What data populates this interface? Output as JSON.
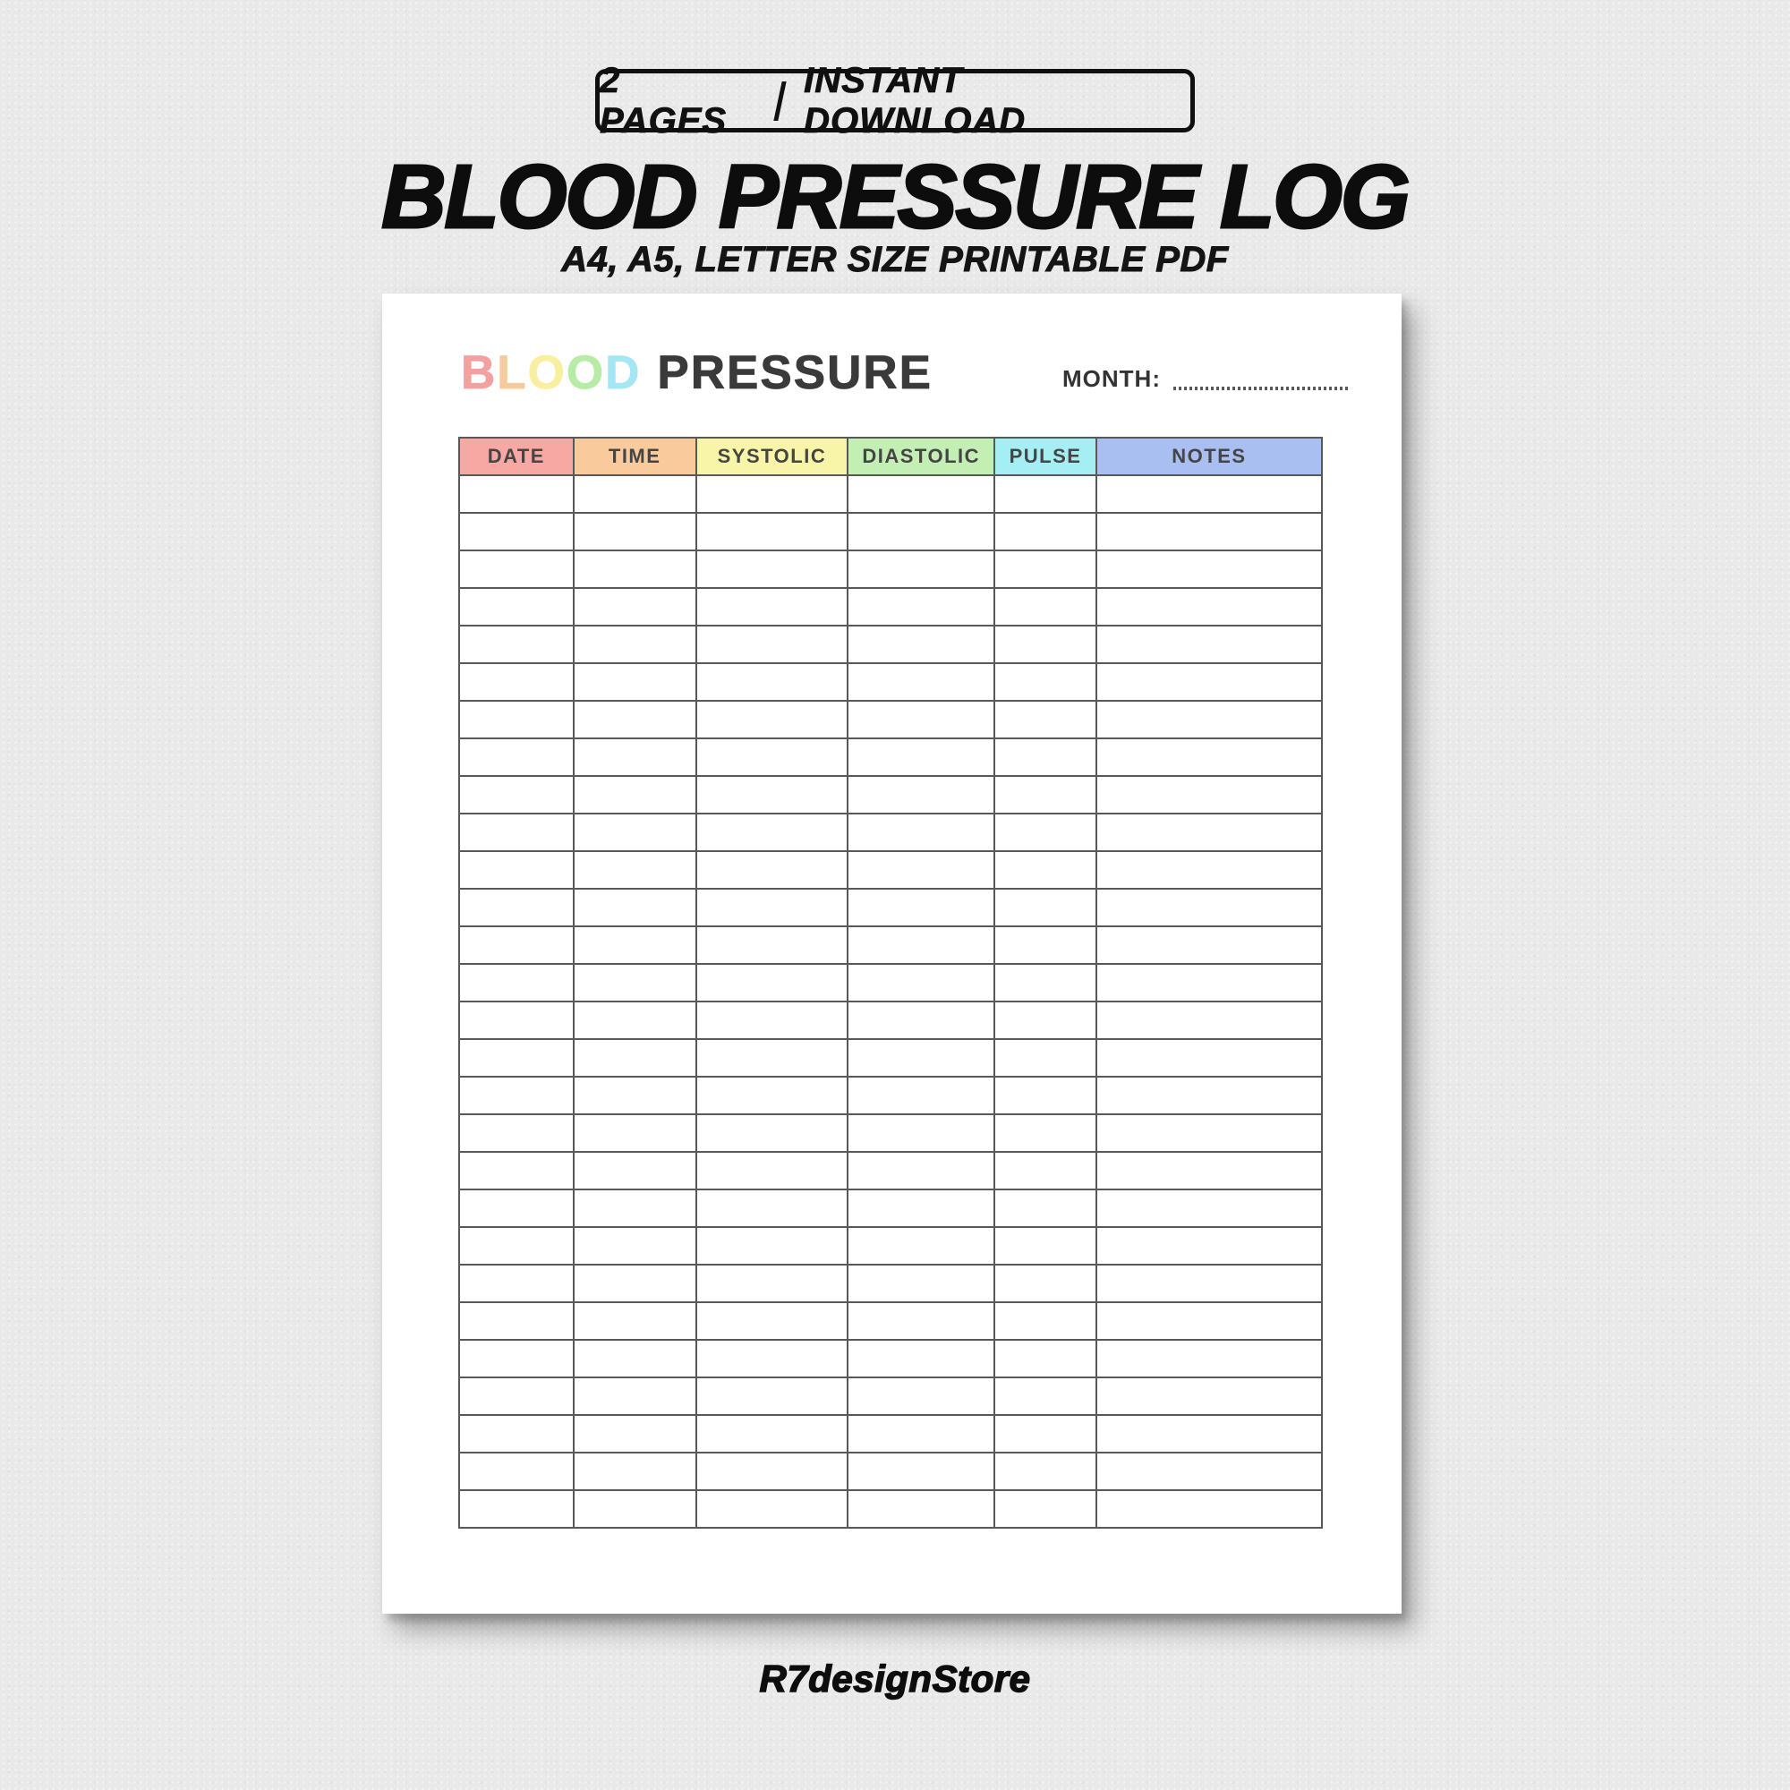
{
  "badge": {
    "pages_label": "2 PAGES",
    "separator": "|",
    "download_label": "INSTANT DOWNLOAD"
  },
  "title": "BLOOD PRESSURE LOG",
  "subtitle": "A4, A5, LETTER SIZE PRINTABLE PDF",
  "page": {
    "logo": {
      "letters": [
        {
          "char": "B",
          "color": "#f2a1a1"
        },
        {
          "char": "L",
          "color": "#f5cb9d"
        },
        {
          "char": "O",
          "color": "#f8f0a0"
        },
        {
          "char": "O",
          "color": "#b7eba6"
        },
        {
          "char": "D",
          "color": "#a5e6f4"
        }
      ],
      "word": "PRESSURE",
      "word_color": "#3a3a3a"
    },
    "month_label": "MONTH:",
    "month_value": "",
    "table": {
      "columns": [
        {
          "label": "DATE",
          "color": "#f7a8a3"
        },
        {
          "label": "TIME",
          "color": "#f9cb9c"
        },
        {
          "label": "SYSTOLIC",
          "color": "#f8f5a8"
        },
        {
          "label": "DIASTOLIC",
          "color": "#c3efb4"
        },
        {
          "label": "PULSE",
          "color": "#a4eef4"
        },
        {
          "label": "NOTES",
          "color": "#a9bff2"
        }
      ],
      "row_count": 28,
      "rows_empty": true
    }
  },
  "footer": {
    "store_name": "R7designStore"
  },
  "colors": {
    "background": "#e9e9e9",
    "page": "#ffffff",
    "ink": "#0d0d0d",
    "table_border": "#585858",
    "header_text": "#454545"
  }
}
